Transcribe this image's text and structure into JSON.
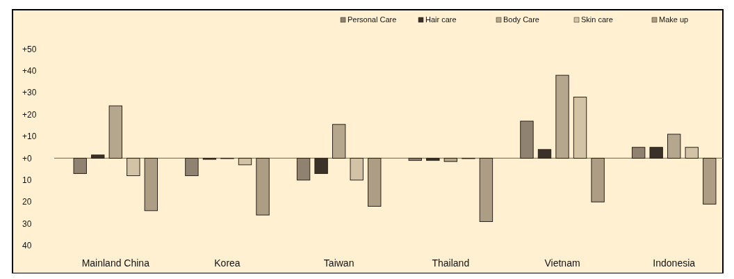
{
  "chart_data": {
    "type": "bar",
    "categories": [
      "Mainland China",
      "Korea",
      "Taiwan",
      "Thailand",
      "Vietnam",
      "Indonesia"
    ],
    "series": [
      {
        "name": "Personal Care",
        "color": "#8f8270",
        "values": [
          -7,
          -8,
          -10,
          -1,
          17,
          5
        ]
      },
      {
        "name": "Hair care",
        "color": "#3a3228",
        "values": [
          1.5,
          -0.5,
          -7,
          -1,
          4,
          5
        ]
      },
      {
        "name": "Body Care",
        "color": "#b5a68e",
        "values": [
          24,
          0,
          15.5,
          -1.5,
          38,
          11
        ]
      },
      {
        "name": "Skin care",
        "color": "#d2c3a6",
        "values": [
          -8,
          -3,
          -10,
          0,
          28,
          5
        ]
      },
      {
        "name": "Make up",
        "color": "#ad9d85",
        "values": [
          -24,
          -26,
          -22,
          -29,
          -20,
          -21
        ]
      }
    ],
    "ylim": [
      -40,
      68
    ],
    "yticks": [
      {
        "value": -40,
        "label": "40"
      },
      {
        "value": -30,
        "label": "30"
      },
      {
        "value": -20,
        "label": "20"
      },
      {
        "value": -10,
        "label": "10"
      },
      {
        "value": 0,
        "label": "+0"
      },
      {
        "value": 10,
        "label": "+10"
      },
      {
        "value": 20,
        "label": "+20"
      },
      {
        "value": 30,
        "label": "+30"
      },
      {
        "value": 40,
        "label": "+40"
      },
      {
        "value": 50,
        "label": "+50"
      }
    ],
    "legend": "top right"
  }
}
